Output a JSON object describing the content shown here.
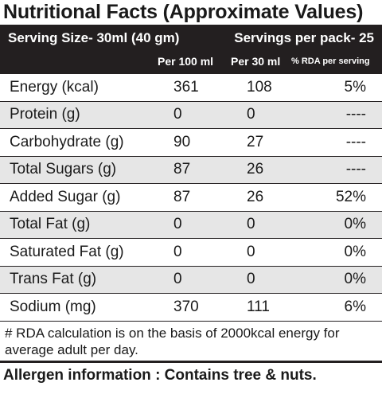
{
  "title": "Nutritional Facts (Approximate Values)",
  "header": {
    "serving_size": "Serving Size-  30ml (40 gm)",
    "servings_per_pack": "Servings per pack- 25",
    "col_per_100": "Per 100 ml",
    "col_per_30": "Per 30 ml",
    "col_rda": "% RDA per serving"
  },
  "rows": [
    {
      "name": "Energy (kcal)",
      "per100": "361",
      "per30": "108",
      "rda": "5%"
    },
    {
      "name": "Protein (g)",
      "per100": "0",
      "per30": "0",
      "rda": "----"
    },
    {
      "name": "Carbohydrate (g)",
      "per100": "90",
      "per30": "27",
      "rda": "----"
    },
    {
      "name": "Total Sugars (g)",
      "per100": "87",
      "per30": "26",
      "rda": "----"
    },
    {
      "name": "Added Sugar (g)",
      "per100": "87",
      "per30": "26",
      "rda": "52%"
    },
    {
      "name": "Total Fat (g)",
      "per100": "0",
      "per30": "0",
      "rda": "0%"
    },
    {
      "name": "Saturated Fat (g)",
      "per100": "0",
      "per30": "0",
      "rda": "0%"
    },
    {
      "name": "Trans Fat (g)",
      "per100": "0",
      "per30": "0",
      "rda": "0%"
    },
    {
      "name": "Sodium (mg)",
      "per100": "370",
      "per30": "111",
      "rda": "6%"
    }
  ],
  "footnote": "# RDA calculation is on the basis of 2000kcal energy for average adult per day.",
  "allergen": "Allergen information : Contains tree & nuts.",
  "colors": {
    "header_bg": "#231f20",
    "shaded_row": "#e6e6e6"
  }
}
